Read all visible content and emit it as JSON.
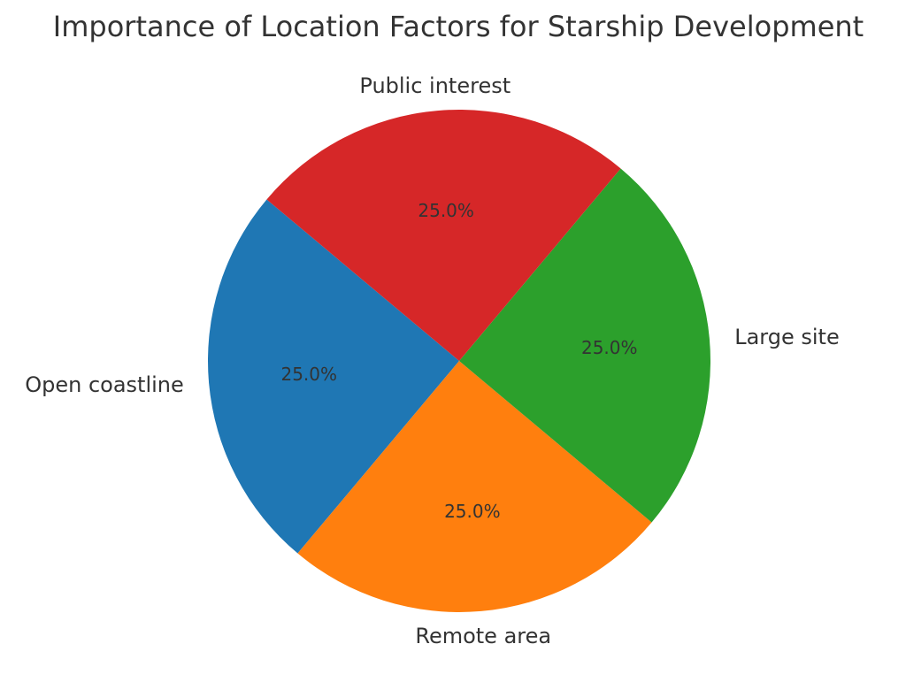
{
  "chart_data": {
    "type": "pie",
    "title": "Importance of Location Factors for Starship Development",
    "categories": [
      "Open coastline",
      "Remote area",
      "Large site",
      "Public interest"
    ],
    "values": [
      25,
      25,
      25,
      25
    ],
    "percent_labels": [
      "25.0%",
      "25.0%",
      "25.0%",
      "25.0%"
    ],
    "colors": [
      "#1f77b4",
      "#ff7f0e",
      "#2ca02c",
      "#d62728"
    ],
    "start_angle_deg": 140,
    "direction": "counterclockwise"
  }
}
